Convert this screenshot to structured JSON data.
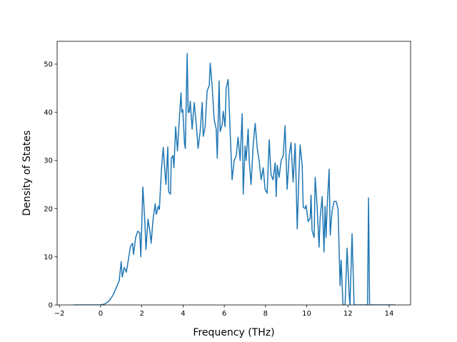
{
  "chart_data": {
    "type": "line",
    "xlabel": "Frequency (THz)",
    "ylabel": "Density of States",
    "x": [
      -1.3,
      -0.5,
      0,
      0.2,
      0.4,
      0.6,
      0.8,
      0.9,
      1.0,
      1.05,
      1.15,
      1.25,
      1.35,
      1.45,
      1.55,
      1.6,
      1.7,
      1.8,
      1.9,
      1.95,
      2.0,
      2.05,
      2.15,
      2.2,
      2.3,
      2.4,
      2.45,
      2.55,
      2.65,
      2.7,
      2.8,
      2.85,
      2.95,
      3.04,
      3.13,
      3.17,
      3.26,
      3.3,
      3.39,
      3.43,
      3.51,
      3.56,
      3.64,
      3.73,
      3.81,
      3.9,
      3.94,
      3.99,
      4.07,
      4.11,
      4.2,
      4.25,
      4.3,
      4.35,
      4.44,
      4.54,
      4.64,
      4.73,
      4.83,
      4.93,
      4.98,
      5.07,
      5.17,
      5.27,
      5.32,
      5.41,
      5.51,
      5.61,
      5.66,
      5.75,
      5.8,
      5.9,
      5.95,
      6.04,
      6.09,
      6.19,
      6.29,
      6.38,
      6.48,
      6.58,
      6.67,
      6.77,
      6.87,
      6.92,
      7.01,
      7.06,
      7.16,
      7.21,
      7.3,
      7.4,
      7.5,
      7.6,
      7.69,
      7.79,
      7.89,
      7.98,
      8.08,
      8.18,
      8.27,
      8.37,
      8.47,
      8.52,
      8.57,
      8.66,
      8.76,
      8.86,
      8.95,
      9.05,
      9.15,
      9.24,
      9.34,
      9.44,
      9.49,
      9.54,
      9.63,
      9.68,
      9.78,
      9.83,
      9.92,
      9.97,
      10.07,
      10.17,
      10.21,
      10.26,
      10.36,
      10.41,
      10.5,
      10.6,
      10.65,
      10.75,
      10.84,
      10.89,
      10.94,
      10.99,
      11.09,
      11.14,
      11.23,
      11.33,
      11.43,
      11.52,
      11.62,
      11.67,
      11.76,
      11.86,
      11.96,
      12.06,
      12.1,
      12.2,
      12.3,
      12.95,
      13.0,
      13.05,
      14.3
    ],
    "series": [
      {
        "color": "#1f77b4",
        "values": [
          0,
          0,
          0,
          0.2,
          0.8,
          2,
          4,
          5,
          9,
          5.8,
          7.8,
          6.8,
          9.5,
          12.2,
          12.8,
          10.5,
          14,
          15.3,
          15,
          10,
          17,
          24.5,
          17,
          11.5,
          17.8,
          15,
          12.8,
          18,
          21,
          18.8,
          20.5,
          19.8,
          28,
          32.7,
          27,
          25,
          32.8,
          23.5,
          23,
          30.5,
          31,
          28.5,
          37,
          32,
          38,
          44,
          40,
          40.5,
          33.5,
          32.5,
          52.2,
          40,
          40,
          42.3,
          36.5,
          42,
          37.5,
          32.5,
          36,
          42,
          35,
          37,
          44.5,
          45.5,
          50.2,
          45.5,
          38.5,
          36.5,
          30.5,
          46.5,
          36,
          37.5,
          40.2,
          37,
          45,
          46.8,
          35.5,
          26,
          30,
          31,
          34.8,
          30,
          39.7,
          23,
          33,
          30,
          36.5,
          30,
          25,
          33,
          37.7,
          32.5,
          30,
          26,
          28.5,
          24,
          23.2,
          34.3,
          27,
          26,
          29.5,
          22.5,
          29,
          26.5,
          30,
          31,
          37.2,
          24,
          31,
          33.7,
          25.5,
          33.5,
          25,
          15.8,
          28,
          33.2,
          29,
          20.3,
          20,
          20.7,
          17.3,
          18,
          22.8,
          15.5,
          14,
          26.5,
          20.8,
          12,
          18,
          22.5,
          11,
          20.5,
          14,
          20.3,
          28.2,
          14.5,
          19.5,
          21.5,
          21.5,
          20,
          4,
          9.3,
          0,
          0,
          11.8,
          2,
          0,
          14.8,
          0,
          0,
          22.2,
          0,
          0
        ]
      }
    ],
    "xlim": [
      -2.11,
      15.04
    ],
    "ylim": [
      0,
      54.73
    ],
    "xticks": [
      {
        "value": -2,
        "label": "−2"
      },
      0,
      2,
      4,
      6,
      8,
      10,
      12,
      14
    ],
    "yticks": [
      0,
      10,
      20,
      30,
      40,
      50
    ],
    "grid": false
  }
}
